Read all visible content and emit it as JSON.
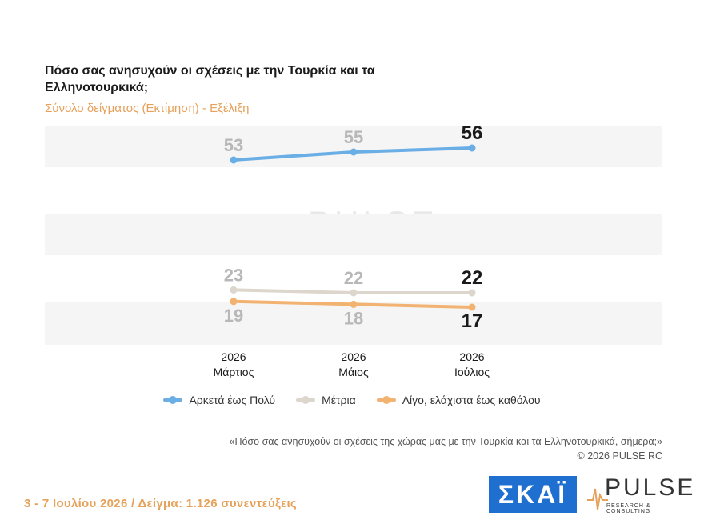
{
  "title": "Πόσο σας ανησυχούν οι σχέσεις με την Τουρκία και τα Ελληνοτουρκικά;",
  "subtitle": "Σύνολο δείγματος (Εκτίμηση) - Εξέλιξη",
  "chart_data": {
    "type": "line",
    "categories": [
      {
        "year": "2026",
        "month": "Μάρτιος"
      },
      {
        "year": "2026",
        "month": "Μάιος"
      },
      {
        "year": "2026",
        "month": "Ιούλιος"
      }
    ],
    "series": [
      {
        "name": "Αρκετά έως Πολύ",
        "values": [
          53,
          55,
          56
        ],
        "color": "#6aaee6"
      },
      {
        "name": "Μέτρια",
        "values": [
          23,
          22,
          22
        ],
        "color": "#dcd6cc"
      },
      {
        "name": "Λίγο, ελάχιστα έως καθόλου",
        "values": [
          19,
          18,
          17
        ],
        "color": "#f2b272"
      }
    ],
    "legend_position": "bottom"
  },
  "legend": [
    {
      "label": "Αρκετά έως Πολύ",
      "color": "#6aaee6"
    },
    {
      "label": "Μέτρια",
      "color": "#dcd6cc"
    },
    {
      "label": "Λίγο, ελάχιστα έως καθόλου",
      "color": "#f2b272"
    }
  ],
  "footnote": {
    "question": "«Πόσο σας ανησυχούν οι σχέσεις της χώρας μας με την Τουρκία και τα Ελληνοτουρκικά, σήμερα;»",
    "copyright": "©  2026  PULSE RC"
  },
  "footer": {
    "dates_sample": "3 - 7  Ιουλίου 2026  /  Δείγμα:  1.126 συνεντεύξεις"
  },
  "logos": {
    "skai": "ΣΚΑΪ",
    "pulse": "PULSE",
    "pulse_sub": "RESEARCH & CONSULTING"
  }
}
